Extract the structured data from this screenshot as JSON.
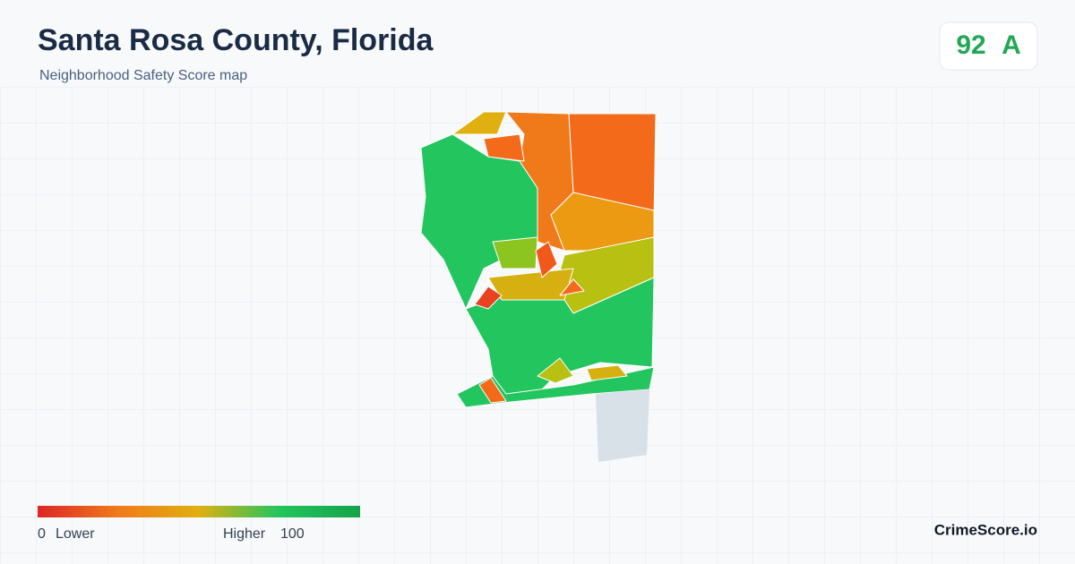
{
  "header": {
    "title": "Santa Rosa County, Florida",
    "subtitle": "Neighborhood Safety Score map"
  },
  "score": {
    "value": 92,
    "grade": "A"
  },
  "legend": {
    "min": 0,
    "min_label": "Lower",
    "max_label": "Higher",
    "max": 100
  },
  "brand": "CrimeScore.io"
}
